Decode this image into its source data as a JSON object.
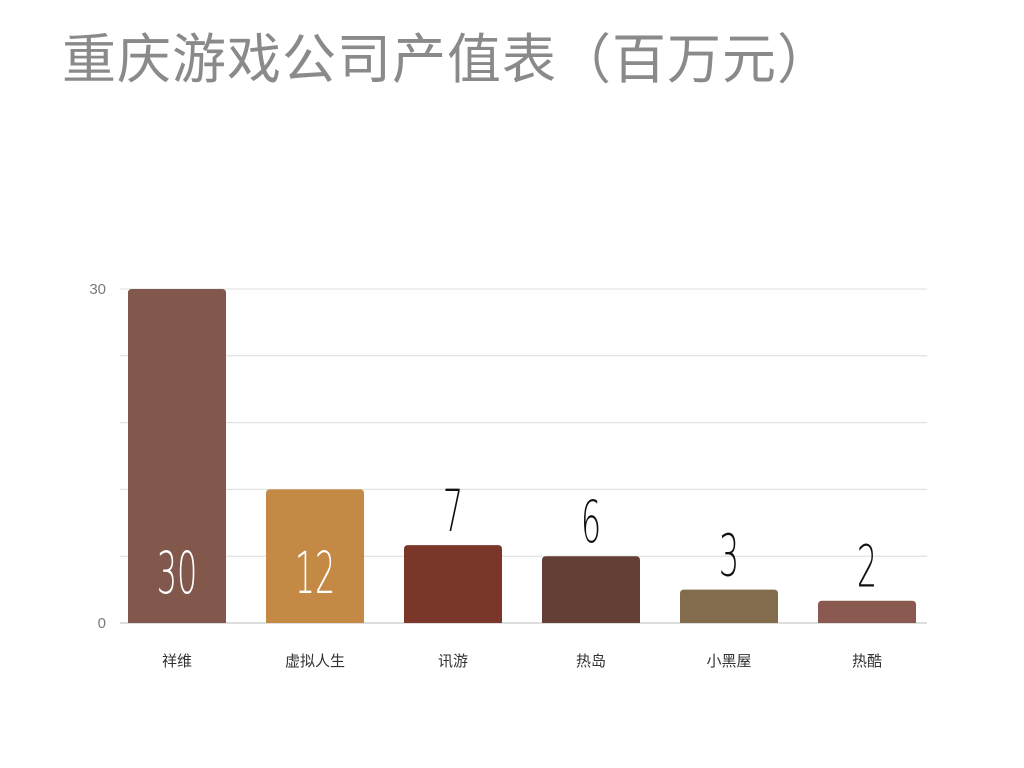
{
  "title": "重庆游戏公司产值表（百万元）",
  "chart_data": {
    "type": "bar",
    "title": "重庆游戏公司产值表（百万元）",
    "xlabel": "",
    "ylabel": "",
    "categories": [
      "祥维",
      "虚拟人生",
      "讯游",
      "热岛",
      "小黑屋",
      "热酷"
    ],
    "values": [
      30,
      12,
      7,
      6,
      3,
      2
    ],
    "bar_colors": [
      "#82574C",
      "#C48A45",
      "#7A3628",
      "#633F36",
      "#826C4D",
      "#8A5A50"
    ],
    "value_label_colors": [
      "#ffffff",
      "#ffffff",
      "#111111",
      "#111111",
      "#111111",
      "#111111"
    ],
    "ylim": [
      0,
      30
    ],
    "yticks": [
      0,
      30
    ],
    "grid": true,
    "legend": "none"
  }
}
